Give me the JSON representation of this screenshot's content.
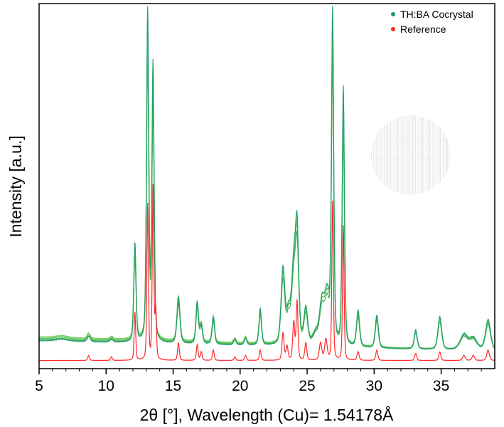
{
  "chart_data": {
    "type": "line",
    "xlabel": "2θ [°], Wavelength (Cu)= 1.54178Å",
    "ylabel": "Intensity [a.u.]",
    "xlim": [
      5,
      39
    ],
    "ylim": [
      0,
      100
    ],
    "xticks": [
      5,
      10,
      15,
      20,
      25,
      30,
      35
    ],
    "yticks_shown": false,
    "grid": false,
    "legend_position": "top-right",
    "colors": {
      "cocrystal": "#1a9a6a",
      "cocrystal_traces": [
        "#2aa84a",
        "#4cb848",
        "#6cc85a"
      ],
      "reference": "#ff2a2a",
      "inset": "#b8b8b8"
    },
    "series": [
      {
        "name": "TH:BA Cocrystal",
        "marker": "dot",
        "color": "#1a9a6a",
        "traces": 4,
        "baseline_start": 6.3,
        "baseline_end": 3.0,
        "peaks": [
          {
            "x": 6.7,
            "y": 0.6,
            "w": 0.5
          },
          {
            "x": 8.7,
            "y": 1.6,
            "w": 0.12
          },
          {
            "x": 10.4,
            "y": 0.8,
            "w": 0.12
          },
          {
            "x": 12.15,
            "y": 28.5,
            "w": 0.09
          },
          {
            "x": 13.1,
            "y": 95.5,
            "w": 0.09
          },
          {
            "x": 13.5,
            "y": 80.0,
            "w": 0.09
          },
          {
            "x": 15.4,
            "y": 13.5,
            "w": 0.12
          },
          {
            "x": 16.8,
            "y": 12.0,
            "w": 0.1
          },
          {
            "x": 17.1,
            "y": 5.5,
            "w": 0.1
          },
          {
            "x": 18.0,
            "y": 8.0,
            "w": 0.1
          },
          {
            "x": 19.6,
            "y": 1.5,
            "w": 0.1
          },
          {
            "x": 20.4,
            "y": 2.0,
            "w": 0.1
          },
          {
            "x": 21.5,
            "y": 10.5,
            "w": 0.1
          },
          {
            "x": 23.2,
            "y": 22.0,
            "w": 0.15
          },
          {
            "x": 23.6,
            "y": 8.0,
            "w": 0.15
          },
          {
            "x": 24.0,
            "y": 22.0,
            "w": 0.18
          },
          {
            "x": 24.25,
            "y": 30.0,
            "w": 0.13
          },
          {
            "x": 24.9,
            "y": 10.5,
            "w": 0.15
          },
          {
            "x": 25.6,
            "y": 3.0,
            "w": 0.2
          },
          {
            "x": 26.1,
            "y": 12.0,
            "w": 0.2
          },
          {
            "x": 26.5,
            "y": 14.0,
            "w": 0.2
          },
          {
            "x": 26.9,
            "y": 95.5,
            "w": 0.09
          },
          {
            "x": 27.7,
            "y": 75.0,
            "w": 0.09
          },
          {
            "x": 28.8,
            "y": 10.5,
            "w": 0.12
          },
          {
            "x": 30.2,
            "y": 9.5,
            "w": 0.12
          },
          {
            "x": 33.1,
            "y": 5.5,
            "w": 0.12
          },
          {
            "x": 34.9,
            "y": 9.5,
            "w": 0.15
          },
          {
            "x": 36.7,
            "y": 4.5,
            "w": 0.3
          },
          {
            "x": 37.4,
            "y": 3.5,
            "w": 0.3
          },
          {
            "x": 38.5,
            "y": 9.0,
            "w": 0.2
          }
        ]
      },
      {
        "name": "Reference",
        "marker": "dot",
        "color": "#ff2a2a",
        "baseline": 0.3,
        "peaks": [
          {
            "x": 8.7,
            "y": 1.5,
            "w": 0.07
          },
          {
            "x": 10.4,
            "y": 1.0,
            "w": 0.07
          },
          {
            "x": 12.15,
            "y": 14.0,
            "w": 0.06
          },
          {
            "x": 13.1,
            "y": 45.0,
            "w": 0.06
          },
          {
            "x": 13.5,
            "y": 50.0,
            "w": 0.06
          },
          {
            "x": 13.7,
            "y": 14.0,
            "w": 0.06
          },
          {
            "x": 15.4,
            "y": 5.0,
            "w": 0.07
          },
          {
            "x": 16.8,
            "y": 4.5,
            "w": 0.07
          },
          {
            "x": 17.1,
            "y": 2.5,
            "w": 0.07
          },
          {
            "x": 18.0,
            "y": 3.0,
            "w": 0.07
          },
          {
            "x": 19.6,
            "y": 1.0,
            "w": 0.07
          },
          {
            "x": 20.4,
            "y": 1.5,
            "w": 0.07
          },
          {
            "x": 21.5,
            "y": 3.0,
            "w": 0.07
          },
          {
            "x": 23.2,
            "y": 8.0,
            "w": 0.08
          },
          {
            "x": 23.5,
            "y": 4.0,
            "w": 0.08
          },
          {
            "x": 24.0,
            "y": 11.0,
            "w": 0.08
          },
          {
            "x": 24.25,
            "y": 17.0,
            "w": 0.07
          },
          {
            "x": 24.9,
            "y": 5.0,
            "w": 0.08
          },
          {
            "x": 26.0,
            "y": 5.0,
            "w": 0.1
          },
          {
            "x": 26.4,
            "y": 6.0,
            "w": 0.1
          },
          {
            "x": 26.9,
            "y": 46.0,
            "w": 0.06
          },
          {
            "x": 27.7,
            "y": 39.0,
            "w": 0.06
          },
          {
            "x": 28.8,
            "y": 2.5,
            "w": 0.08
          },
          {
            "x": 30.2,
            "y": 3.0,
            "w": 0.08
          },
          {
            "x": 33.1,
            "y": 2.0,
            "w": 0.08
          },
          {
            "x": 34.9,
            "y": 2.5,
            "w": 0.08
          },
          {
            "x": 36.7,
            "y": 1.5,
            "w": 0.1
          },
          {
            "x": 37.4,
            "y": 1.5,
            "w": 0.1
          },
          {
            "x": 38.5,
            "y": 3.0,
            "w": 0.1
          }
        ]
      }
    ]
  }
}
